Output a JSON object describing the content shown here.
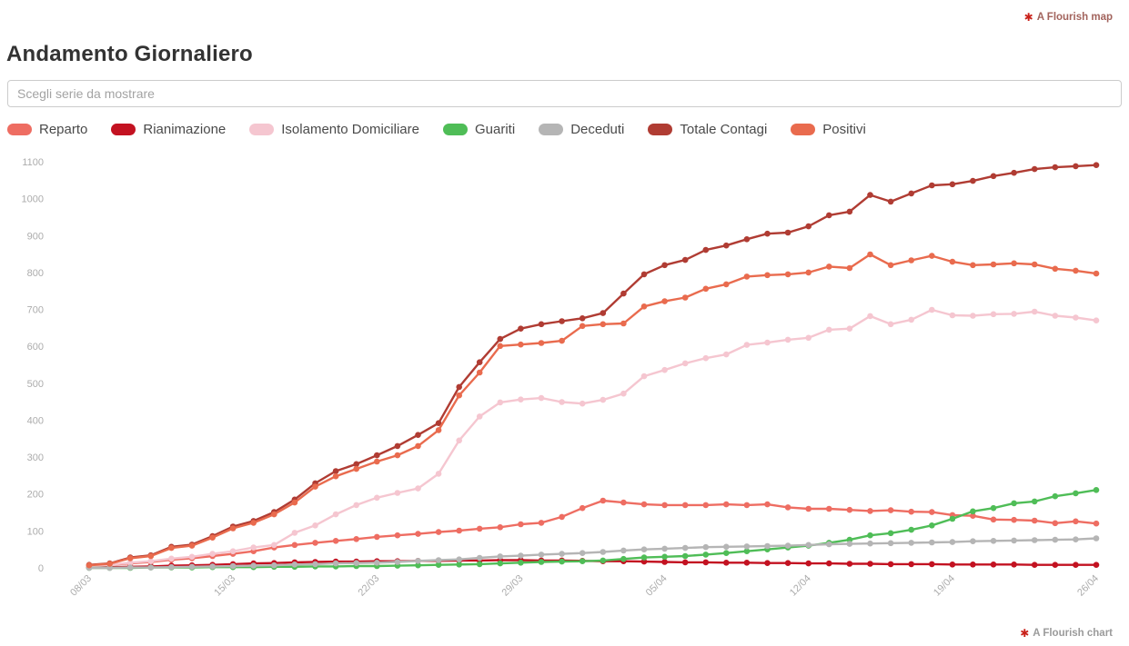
{
  "header": {
    "title": "Andamento Giornaliero",
    "credit_top_label": "A Flourish map",
    "credit_bottom_label": "A Flourish chart",
    "credit_icon": "flourish-asterisk",
    "credit_icon_glyph": "✱",
    "credit_icon_color": "#c9211a"
  },
  "controls": {
    "series_filter_placeholder": "Scegli serie da mostrare"
  },
  "chart_data": {
    "type": "line",
    "title": "Andamento Giornaliero",
    "xlabel": "",
    "ylabel": "",
    "ylim": [
      0,
      1100
    ],
    "y_ticks": [
      0,
      100,
      200,
      300,
      400,
      500,
      600,
      700,
      800,
      900,
      1000,
      1100
    ],
    "x_ticks": [
      "08/03",
      "15/03",
      "22/03",
      "29/03",
      "05/04",
      "12/04",
      "19/04",
      "26/04"
    ],
    "grid": false,
    "legend_position": "top",
    "x": [
      "08/03",
      "09/03",
      "10/03",
      "11/03",
      "12/03",
      "13/03",
      "14/03",
      "15/03",
      "16/03",
      "17/03",
      "18/03",
      "19/03",
      "20/03",
      "21/03",
      "22/03",
      "23/03",
      "24/03",
      "25/03",
      "26/03",
      "27/03",
      "28/03",
      "29/03",
      "30/03",
      "31/03",
      "01/04",
      "02/04",
      "03/04",
      "04/04",
      "05/04",
      "06/04",
      "07/04",
      "08/04",
      "09/04",
      "10/04",
      "11/04",
      "12/04",
      "13/04",
      "14/04",
      "15/04",
      "16/04",
      "17/04",
      "18/04",
      "19/04",
      "20/04",
      "21/04",
      "22/04",
      "23/04",
      "24/04",
      "25/04",
      "26/04"
    ],
    "series": [
      {
        "name": "Reparto",
        "color": "#ee6d62",
        "values": [
          5,
          8,
          12,
          16,
          22,
          26,
          32,
          38,
          45,
          55,
          62,
          68,
          73,
          78,
          84,
          88,
          92,
          97,
          101,
          106,
          110,
          118,
          122,
          138,
          162,
          182,
          177,
          172,
          170,
          170,
          170,
          172,
          170,
          172,
          164,
          160,
          160,
          157,
          154,
          156,
          152,
          151,
          143,
          141,
          131,
          130,
          128,
          121,
          126,
          120
        ]
      },
      {
        "name": "Rianimazione",
        "color": "#c31221",
        "values": [
          1,
          2,
          3,
          4,
          6,
          7,
          8,
          10,
          12,
          13,
          15,
          16,
          17,
          17,
          18,
          18,
          19,
          19,
          20,
          20,
          21,
          21,
          20,
          20,
          19,
          18,
          18,
          17,
          16,
          15,
          15,
          14,
          14,
          13,
          13,
          12,
          12,
          11,
          11,
          10,
          10,
          10,
          9,
          9,
          9,
          9,
          8,
          8,
          8,
          8
        ]
      },
      {
        "name": "Isolamento Domiciliare",
        "color": "#f5c6d0",
        "values": [
          5,
          8,
          14,
          18,
          25,
          30,
          38,
          45,
          55,
          62,
          95,
          115,
          145,
          170,
          190,
          203,
          215,
          255,
          345,
          410,
          448,
          456,
          460,
          449,
          445,
          455,
          472,
          519,
          536,
          554,
          568,
          578,
          604,
          610,
          618,
          623,
          645,
          648,
          682,
          660,
          672,
          699,
          684,
          683,
          687,
          688,
          694,
          683,
          678,
          670
        ]
      },
      {
        "name": "Guariti",
        "color": "#4fbd57",
        "values": [
          0,
          0,
          0,
          1,
          1,
          1,
          2,
          2,
          2,
          3,
          3,
          4,
          4,
          5,
          5,
          6,
          7,
          8,
          9,
          10,
          12,
          14,
          16,
          17,
          18,
          20,
          24,
          28,
          30,
          32,
          36,
          40,
          45,
          50,
          55,
          60,
          68,
          76,
          88,
          94,
          103,
          115,
          133,
          153,
          162,
          175,
          180,
          194,
          202,
          211
        ]
      },
      {
        "name": "Deceduti",
        "color": "#b5b5b5",
        "values": [
          0,
          0,
          1,
          1,
          2,
          3,
          4,
          5,
          6,
          7,
          9,
          10,
          12,
          13,
          14,
          16,
          19,
          21,
          23,
          27,
          31,
          33,
          36,
          38,
          40,
          43,
          47,
          50,
          52,
          54,
          56,
          57,
          58,
          59,
          60,
          62,
          64,
          65,
          66,
          67,
          68,
          69,
          70,
          72,
          73,
          74,
          75,
          76,
          77,
          80
        ]
      },
      {
        "name": "Totale Contagi",
        "color": "#b03c33",
        "values": [
          8,
          12,
          28,
          34,
          57,
          63,
          86,
          112,
          127,
          151,
          185,
          229,
          262,
          281,
          305,
          330,
          360,
          392,
          490,
          557,
          620,
          648,
          660,
          668,
          676,
          690,
          743,
          795,
          820,
          834,
          861,
          873,
          890,
          905,
          908,
          925,
          955,
          965,
          1010,
          992,
          1014,
          1036,
          1039,
          1048,
          1061,
          1070,
          1080,
          1085,
          1088,
          1091
        ]
      },
      {
        "name": "Positivi",
        "color": "#e96b4e",
        "values": [
          7,
          11,
          26,
          32,
          54,
          60,
          82,
          107,
          122,
          145,
          177,
          220,
          248,
          268,
          288,
          305,
          330,
          373,
          467,
          529,
          601,
          605,
          609,
          615,
          655,
          660,
          662,
          708,
          722,
          732,
          756,
          768,
          789,
          793,
          795,
          800,
          816,
          812,
          849,
          820,
          833,
          845,
          829,
          820,
          822,
          825,
          822,
          810,
          805,
          797
        ]
      }
    ]
  }
}
